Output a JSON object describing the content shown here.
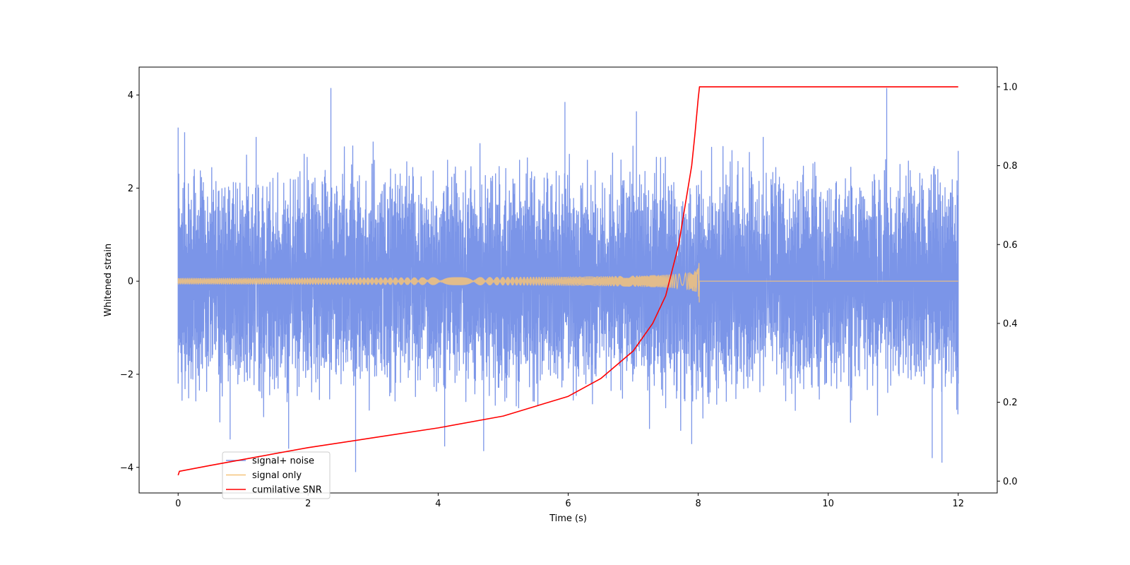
{
  "chart_data": {
    "type": "line",
    "xlabel": "Time (s)",
    "ylabel": "Whitened strain",
    "y2label": "",
    "xlim": [
      -0.6,
      12.6
    ],
    "ylim": [
      -4.55,
      4.6
    ],
    "y2lim": [
      -0.03,
      1.05
    ],
    "x_ticks": [
      0,
      2,
      4,
      6,
      8,
      10,
      12
    ],
    "y_ticks": [
      -4,
      -2,
      0,
      2,
      4
    ],
    "y2_ticks": [
      0.0,
      0.2,
      0.4,
      0.6,
      0.8,
      1.0
    ],
    "x_tick_labels": [
      "0",
      "2",
      "4",
      "6",
      "8",
      "10",
      "12"
    ],
    "y_tick_labels": [
      "−4",
      "−2",
      "0",
      "2",
      "4"
    ],
    "y2_tick_labels": [
      "0.0",
      "0.2",
      "0.4",
      "0.6",
      "0.8",
      "1.0"
    ],
    "grid": false,
    "legend_position": "lower-left",
    "series": [
      {
        "name": "signal+ noise",
        "axis": "left",
        "color": "#7b95e8",
        "description_of_shape": "gaussian noise spanning 0-12 s",
        "envelope_max": [
          [
            0,
            3.3
          ],
          [
            0.1,
            3.2
          ],
          [
            1.2,
            3.1
          ],
          [
            2.35,
            4.15
          ],
          [
            3.0,
            3.0
          ],
          [
            5.95,
            3.85
          ],
          [
            7.05,
            3.65
          ],
          [
            9.0,
            3.1
          ],
          [
            10.9,
            4.15
          ],
          [
            12,
            2.8
          ]
        ],
        "envelope_min": [
          [
            0,
            -2.2
          ],
          [
            0.8,
            -3.4
          ],
          [
            1.7,
            -3.6
          ],
          [
            2.73,
            -4.1
          ],
          [
            4.1,
            -3.55
          ],
          [
            4.7,
            -3.65
          ],
          [
            7.9,
            -3.5
          ],
          [
            11.6,
            -3.8
          ],
          [
            11.75,
            -3.9
          ],
          [
            12,
            -2.2
          ]
        ]
      },
      {
        "name": "signal only",
        "axis": "left",
        "color": "#f5c37a",
        "description_of_shape": "chirp with amplitude growing until merger at ~8.02 s, then zero",
        "peak_time": 8.02,
        "peak_amplitude": 0.45
      },
      {
        "name": "cumilative SNR",
        "axis": "right",
        "color": "#ff0000",
        "x": [
          0.0,
          0.02,
          0.5,
          1.0,
          2.0,
          3.0,
          4.0,
          5.0,
          6.0,
          6.5,
          7.0,
          7.3,
          7.5,
          7.7,
          7.8,
          7.9,
          7.95,
          8.0,
          8.02,
          9.0,
          10.0,
          11.0,
          12.0
        ],
        "y": [
          0.015,
          0.025,
          0.04,
          0.055,
          0.085,
          0.11,
          0.135,
          0.165,
          0.215,
          0.26,
          0.33,
          0.4,
          0.47,
          0.6,
          0.7,
          0.8,
          0.88,
          0.97,
          1.0,
          1.0,
          1.0,
          1.0,
          1.0
        ]
      }
    ]
  }
}
